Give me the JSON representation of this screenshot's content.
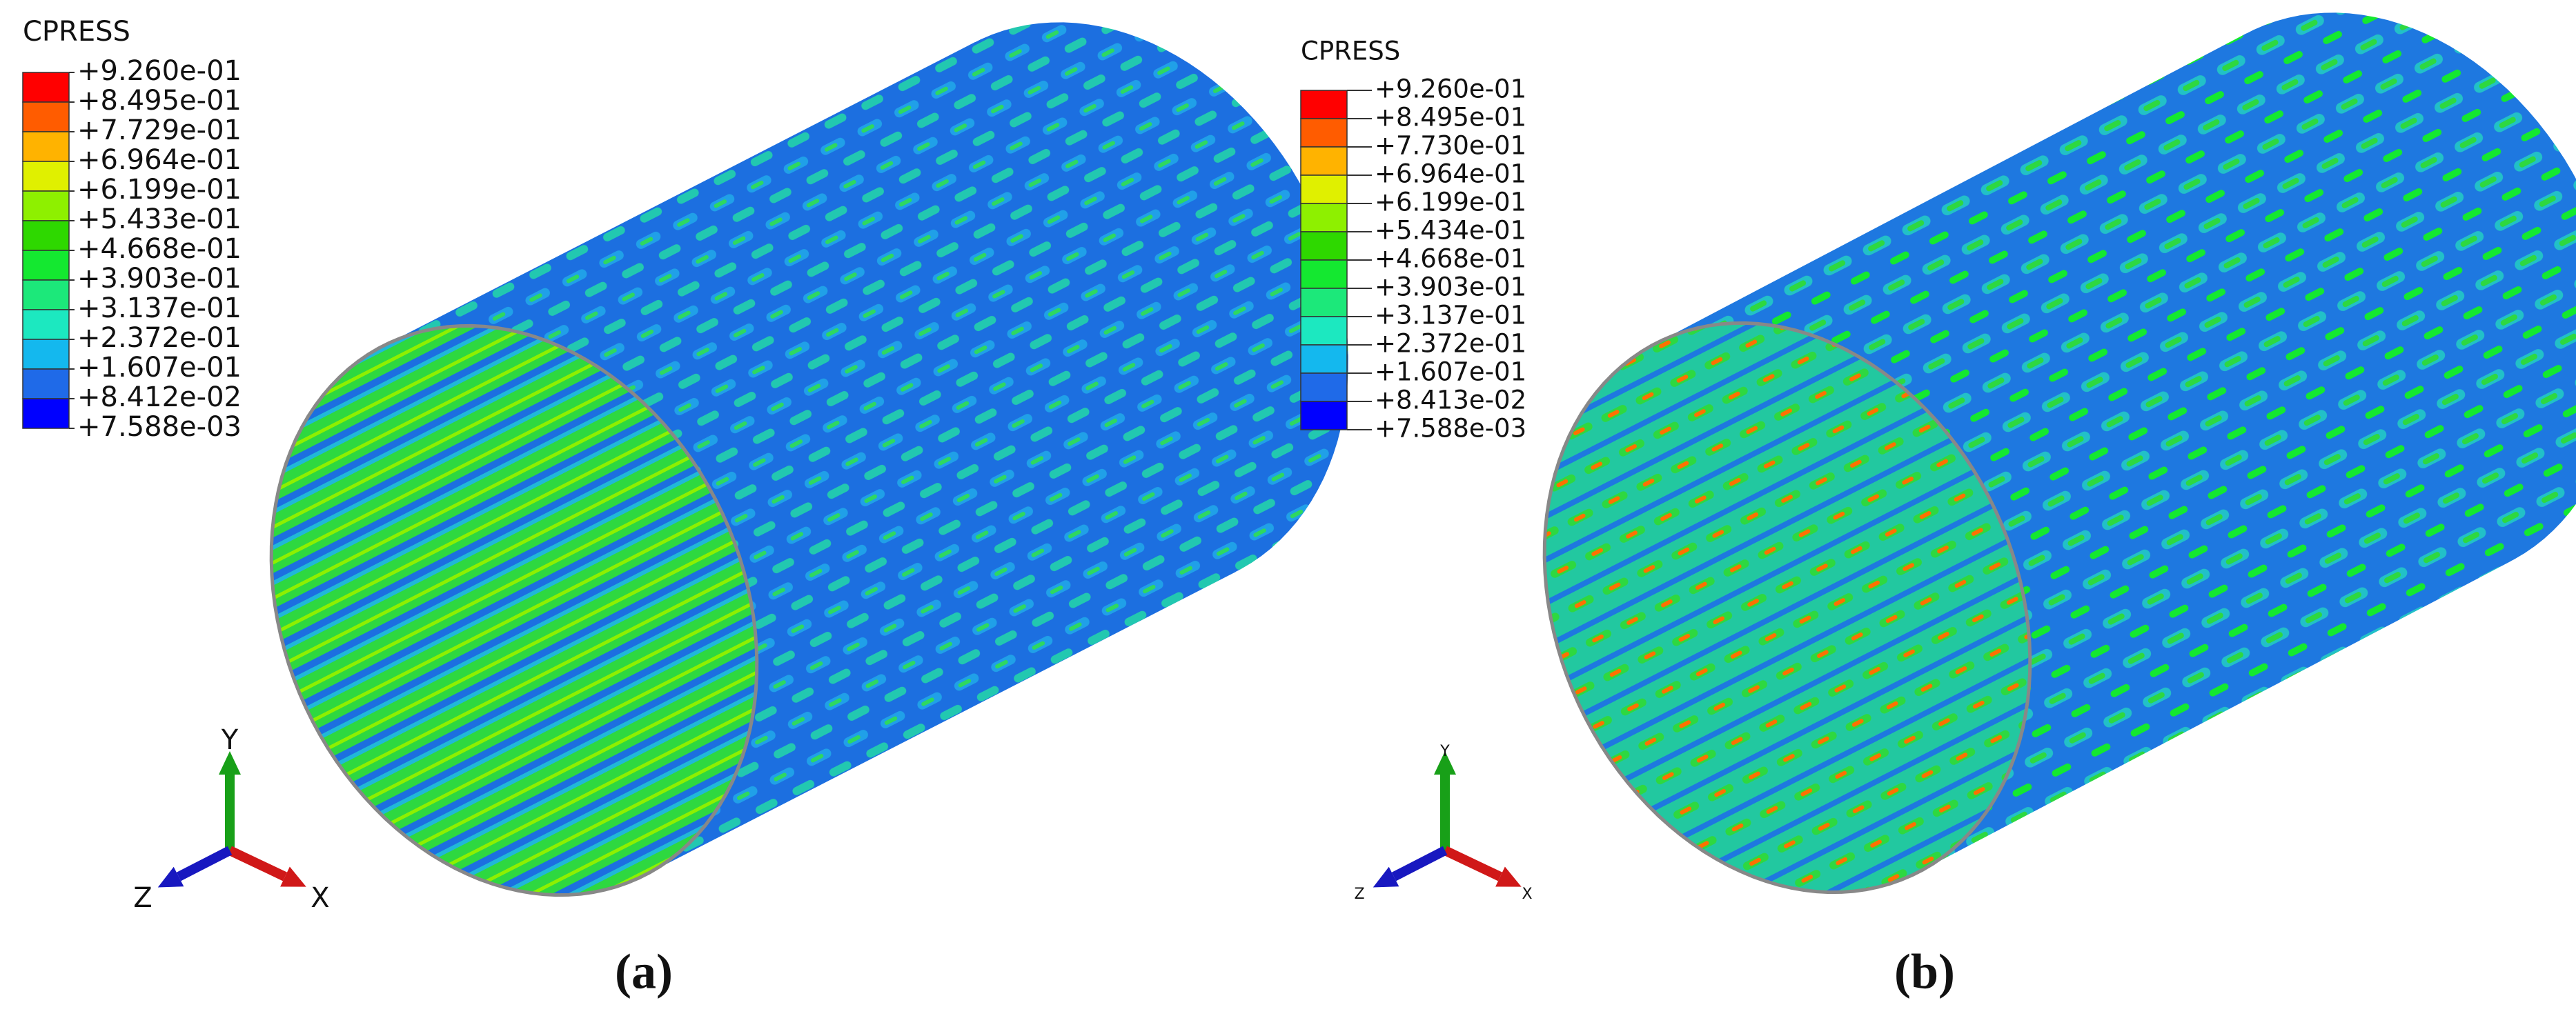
{
  "panels": [
    {
      "legend": {
        "title": "CPRESS",
        "labels": [
          "+9.260e-01",
          "+8.495e-01",
          "+7.729e-01",
          "+6.964e-01",
          "+6.199e-01",
          "+5.433e-01",
          "+4.668e-01",
          "+3.903e-01",
          "+3.137e-01",
          "+2.372e-01",
          "+1.607e-01",
          "+8.412e-02",
          "+7.588e-03"
        ],
        "colors": [
          "#ff0000",
          "#ff5c00",
          "#ffb300",
          "#e0f000",
          "#8ef000",
          "#2ed800",
          "#14e830",
          "#1ce87a",
          "#1ce8c0",
          "#14b8ee",
          "#1f6ae8",
          "#0000ff"
        ]
      },
      "axes": {
        "y": "Y",
        "x": "X",
        "z": "Z"
      },
      "caption": "(a)"
    },
    {
      "legend": {
        "title": "CPRESS",
        "labels": [
          "+9.260e-01",
          "+8.495e-01",
          "+7.730e-01",
          "+6.964e-01",
          "+6.199e-01",
          "+5.434e-01",
          "+4.668e-01",
          "+3.903e-01",
          "+3.137e-01",
          "+2.372e-01",
          "+1.607e-01",
          "+8.413e-02",
          "+7.588e-03"
        ],
        "colors": [
          "#ff0000",
          "#ff5c00",
          "#ffb300",
          "#e0f000",
          "#8ef000",
          "#2ed800",
          "#14e830",
          "#1ce87a",
          "#1ce8c0",
          "#14b8ee",
          "#1f6ae8",
          "#0000ff"
        ]
      },
      "axes": {
        "y": "Y",
        "x": "X",
        "z": "Z"
      },
      "caption": "(b)"
    }
  ]
}
